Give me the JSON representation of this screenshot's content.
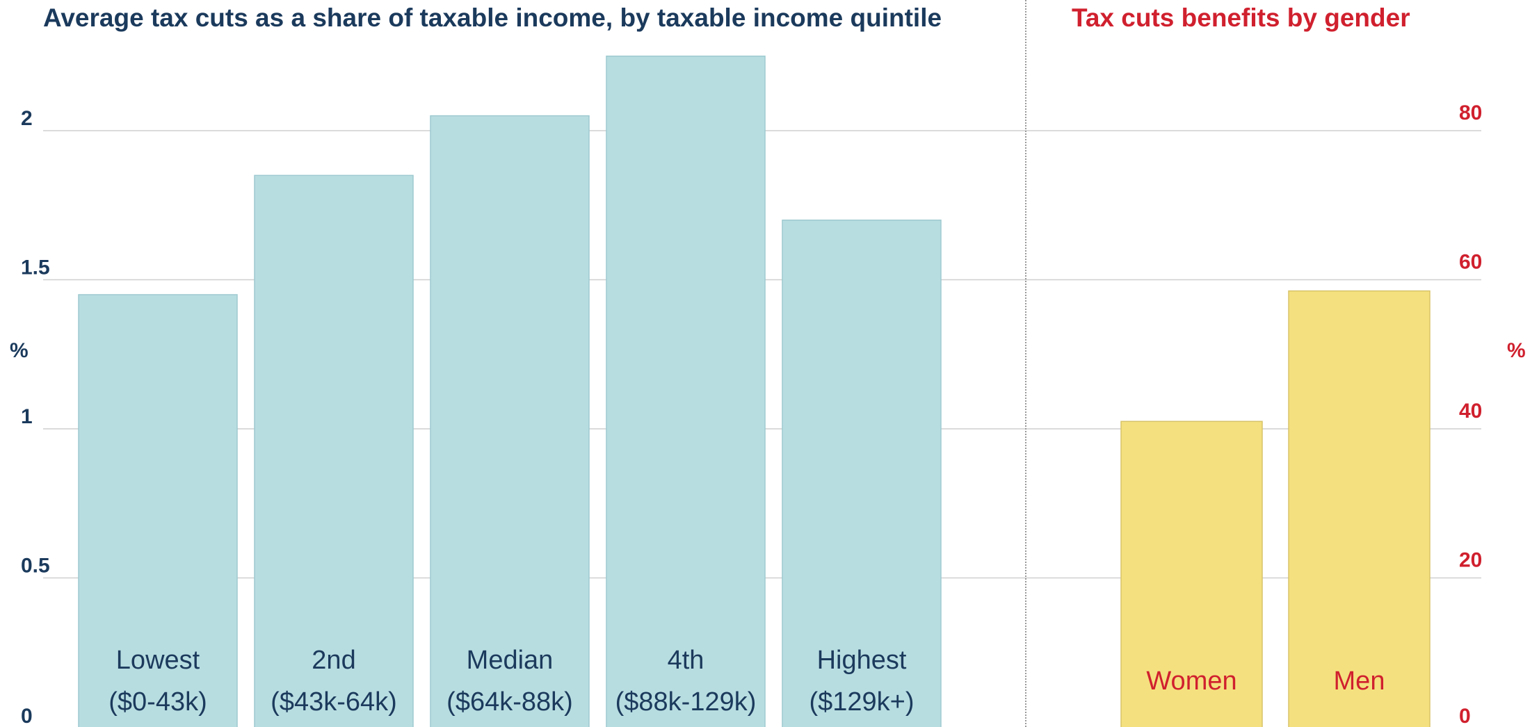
{
  "colors": {
    "income_text": "#1b3a5c",
    "gender_text": "#d0202e",
    "income_bar": "#b8dde1",
    "income_bar_stroke": "#9ecad0",
    "gender_bar": "#f5e07f",
    "gender_bar_stroke": "#d8c46a",
    "grid": "#cfcfcf",
    "divider": "#999999"
  },
  "chart_data": [
    {
      "type": "bar",
      "title": "Average tax cuts as a share of taxable income, by taxable income quintile",
      "ylabel": "%",
      "ylim": [
        0,
        2.25
      ],
      "yticks": [
        "0",
        "0.5",
        "1",
        "1.5",
        "2"
      ],
      "categories": [
        [
          "Lowest",
          "($0-43k)"
        ],
        [
          "2nd",
          "($43k-64k)"
        ],
        [
          "Median",
          "($64k-88k)"
        ],
        [
          "4th",
          "($88k-129k)"
        ],
        [
          "Highest",
          "($129k+)"
        ]
      ],
      "values": [
        1.45,
        1.85,
        2.05,
        2.25,
        1.7
      ],
      "grid": true,
      "axis_side": "left"
    },
    {
      "type": "bar",
      "title": "Tax cuts benefits by gender",
      "ylabel": "%",
      "ylim": [
        0,
        80
      ],
      "yticks": [
        "0",
        "20",
        "40",
        "60",
        "80"
      ],
      "categories": [
        [
          "Women"
        ],
        [
          "Men"
        ]
      ],
      "values": [
        41,
        58.5
      ],
      "grid": true,
      "axis_side": "right"
    }
  ]
}
